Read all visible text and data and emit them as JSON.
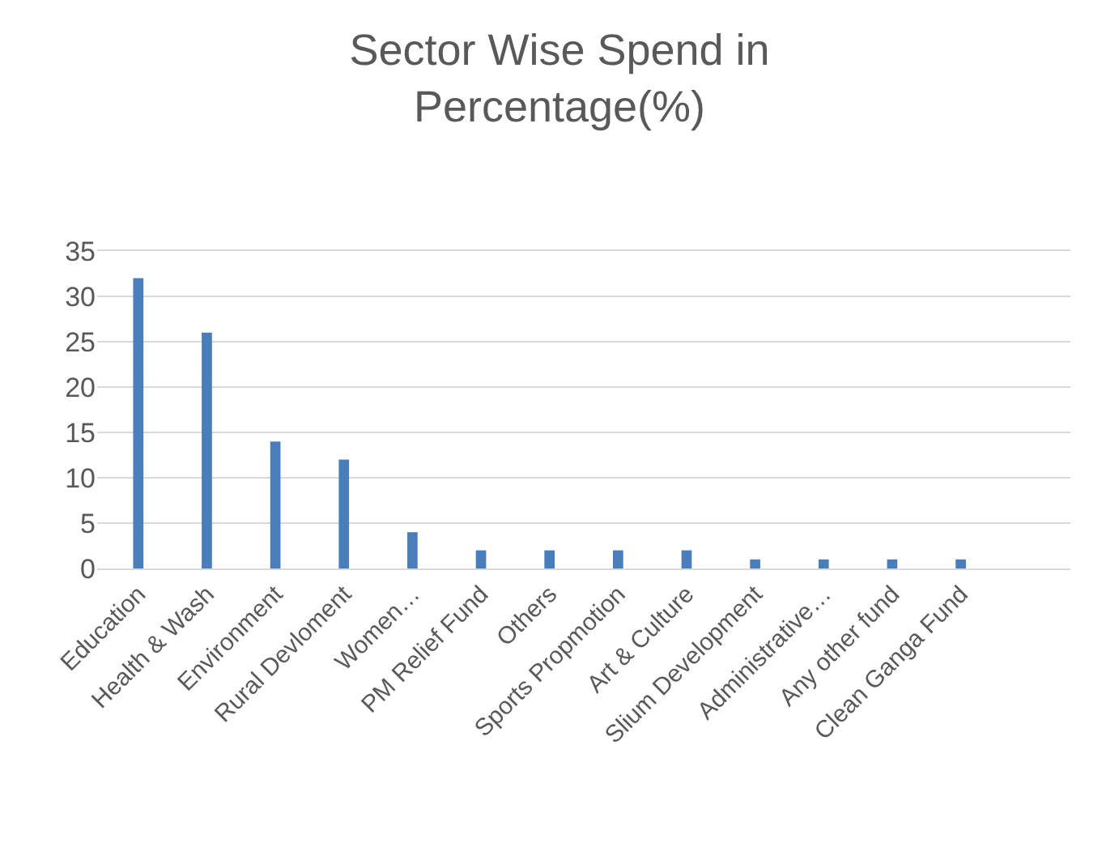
{
  "chart_data": {
    "type": "bar",
    "title": "Sector Wise Spend in Percentage(%)",
    "categories": [
      "Education",
      "Health & Wash",
      "Environment",
      "Rural Devloment",
      "Women…",
      "PM Relief Fund",
      "Others",
      "Sports Propmotion",
      "Art & Culture",
      "Slium Development",
      "Administrative…",
      "Any other fund",
      "Clean Ganga Fund",
      null
    ],
    "values": [
      32,
      26,
      14,
      12,
      4,
      2,
      2,
      2,
      2,
      1,
      1,
      1,
      1,
      null
    ],
    "color": "#4a7ebb",
    "ylim": [
      0,
      35
    ],
    "yticks": [
      0,
      5,
      10,
      15,
      20,
      25,
      30,
      35
    ],
    "grid": "y",
    "legend": false
  }
}
